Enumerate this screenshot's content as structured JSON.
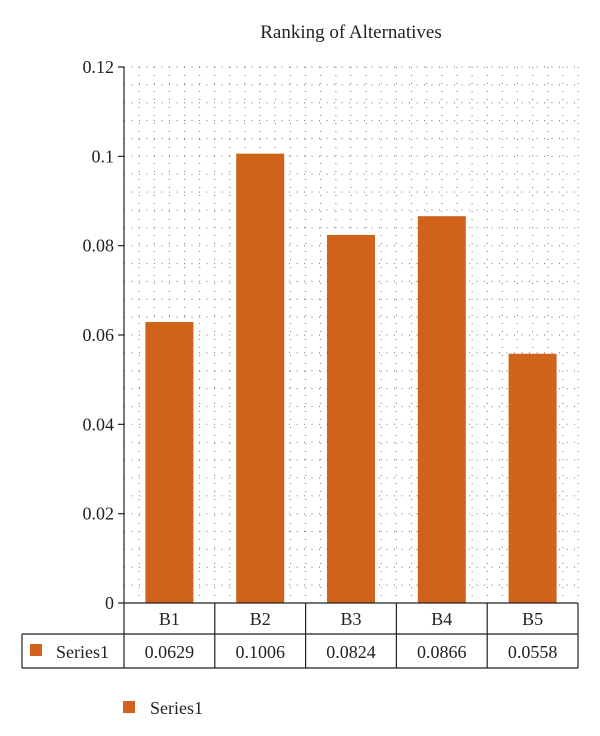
{
  "chart_data": {
    "type": "bar",
    "title": "Ranking of Alternatives",
    "categories": [
      "B1",
      "B2",
      "B3",
      "B4",
      "B5"
    ],
    "series": [
      {
        "name": "Series1",
        "values": [
          0.0629,
          0.1006,
          0.0824,
          0.0866,
          0.0558
        ]
      }
    ],
    "data_table": {
      "series_label": "Series1",
      "values": [
        "0.0629",
        "0.1006",
        "0.0824",
        "0.0866",
        "0.0558"
      ]
    },
    "ylim": [
      0,
      0.12
    ],
    "yticks": [
      "0",
      "0.02",
      "0.04",
      "0.06",
      "0.08",
      "0.1",
      "0.12"
    ],
    "grid": true,
    "legend": {
      "position": "bottom-left",
      "label": "Series1"
    },
    "colors": {
      "bar": "#d0621a",
      "grid": "#8a8a8a",
      "axis": "#222222"
    }
  }
}
